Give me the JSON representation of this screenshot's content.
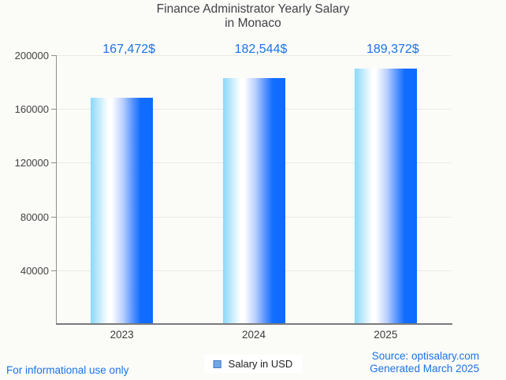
{
  "title": {
    "line1": "Finance Administrator Yearly Salary",
    "line2": "in Monaco"
  },
  "chart_data": {
    "type": "bar",
    "title": "Finance Administrator Yearly Salary in Monaco",
    "categories": [
      "2023",
      "2024",
      "2025"
    ],
    "values": [
      167472,
      182544,
      189372
    ],
    "value_labels": [
      "167,472$",
      "182,544$",
      "189,372$"
    ],
    "series": [
      {
        "name": "Salary in USD",
        "values": [
          167472,
          182544,
          189372
        ]
      }
    ],
    "xlabel": "",
    "ylabel": "",
    "ylim": [
      0,
      200000
    ],
    "yticks": [
      40000,
      80000,
      120000,
      160000,
      200000
    ],
    "ytick_labels": [
      "40000",
      "80000",
      "120000",
      "160000",
      "200000"
    ],
    "grid": true,
    "legend_position": "bottom",
    "bar_gradient": [
      {
        "color": "#8ad9f8",
        "pos": "0%"
      },
      {
        "color": "#ffffff",
        "pos": "28%"
      },
      {
        "color": "#ffffff",
        "pos": "34%"
      },
      {
        "color": "#b9cffe",
        "pos": "52%"
      },
      {
        "color": "#639aff",
        "pos": "66%"
      },
      {
        "color": "#126dff",
        "pos": "80%"
      },
      {
        "color": "#0d6bff",
        "pos": "100%"
      }
    ]
  },
  "legend": {
    "label": "Salary in USD"
  },
  "footer": {
    "left": "For informational use only",
    "source": "Source: optisalary.com",
    "generated": "Generated March 2025"
  },
  "colors": {
    "accent": "#1a73e8",
    "legend_marker_fill": "#6fa8e5",
    "legend_marker_border": "#4379c2",
    "background": "#fbfbf8"
  }
}
